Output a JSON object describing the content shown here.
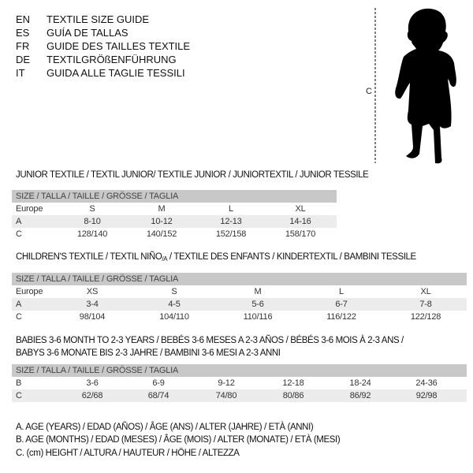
{
  "languages": [
    {
      "code": "EN",
      "text": "TEXTILE SIZE GUIDE"
    },
    {
      "code": "ES",
      "text": "GUÍA DE TALLAS"
    },
    {
      "code": "FR",
      "text": "GUIDE DES TAILLES TEXTILE"
    },
    {
      "code": "DE",
      "text": "TEXTILGRÖßENFÜHRUNG"
    },
    {
      "code": "IT",
      "text": "GUIDA ALLE TAGLIE TESSILI"
    }
  ],
  "figure": {
    "measure_label": "C"
  },
  "junior": {
    "title": "JUNIOR TEXTILE / TEXTIL JUNIOR/ TEXTILE JUNIOR / JUNIORTEXTIL / JUNIOR TESSILE",
    "header": "SIZE / TALLA / TAILLE / GRÖSSE / TAGLIA",
    "rows": [
      {
        "label": "Europe",
        "values": [
          "S",
          "M",
          "L",
          "XL"
        ]
      },
      {
        "label": "A",
        "values": [
          "8-10",
          "10-12",
          "12-13",
          "14-16"
        ]
      },
      {
        "label": "C",
        "values": [
          "128/140",
          "140/152",
          "152/158",
          "158/170"
        ]
      }
    ]
  },
  "children": {
    "title_pre": "CHILDREN'S TEXTILE / TEXTIL NIÑO",
    "title_sub": "/A",
    "title_post": " / TEXTILE DES ENFANTS / KINDERTEXTIL / BAMBINI TESSILE",
    "header": "SIZE / TALLA / TAILLE / GRÖSSE / TAGLIA",
    "rows": [
      {
        "label": "Europe",
        "values": [
          "XS",
          "S",
          "M",
          "L",
          "XL"
        ]
      },
      {
        "label": "A",
        "values": [
          "3-4",
          "4-5",
          "5-6",
          "6-7",
          "7-8"
        ]
      },
      {
        "label": "C",
        "values": [
          "98/104",
          "104/110",
          "110/116",
          "116/122",
          "122/128"
        ]
      }
    ]
  },
  "babies": {
    "title_line1": "BABIES 3-6 MONTH TO 2-3 YEARS / BEBÉS 3-6 MESES A 2-3 AÑOS / BÉBÉS 3-6 MOIS À 2-3 ANS /",
    "title_line2": "BABYS 3-6 MONATE BIS 2-3 JAHRE / BAMBINI 3-6 MESI A 2-3 ANNI",
    "header": "SIZE / TALLA / TAILLE / GRÖSSE / TAGLIA",
    "rows": [
      {
        "label": "B",
        "values": [
          "3-6",
          "6-9",
          "9-12",
          "12-18",
          "18-24",
          "24-36"
        ]
      },
      {
        "label": "C",
        "values": [
          "62/68",
          "68/74",
          "74/80",
          "80/86",
          "86/92",
          "92/98"
        ]
      }
    ]
  },
  "legend": [
    "A. AGE (YEARS) / EDAD (AÑOS) / ÂGE (ANS) / ALTER (JAHRE) / ETÀ (ANNI)",
    "B. AGE (MONTHS) / EDAD (MESES) / ÂGE (MOIS) / ALTER (MONATE) / ETÀ (MESI)",
    "C. (cm) HEIGHT / ALTURA / HAUTEUR / HÖHE / ALTEZZA"
  ],
  "colors": {
    "header_bg": "#c8c8c8",
    "shade_bg": "#ececec"
  }
}
